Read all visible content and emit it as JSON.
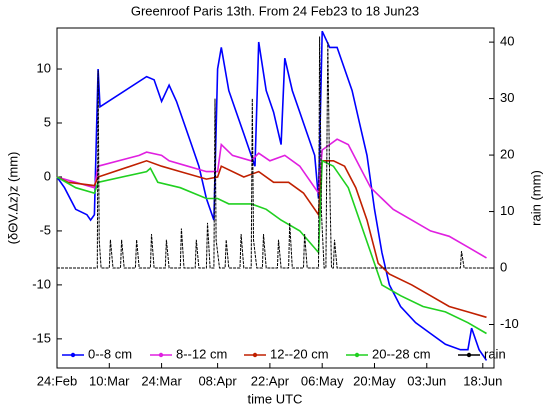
{
  "chart_data": {
    "type": "line",
    "title": "Greenroof Paris 13th. From 24 Feb23 to 18 Jun23",
    "xlabel": "time UTC",
    "ylabel": "(δΘV.Δz)z (mm)",
    "y2label": "rain (mm)",
    "xlim": [
      0,
      117
    ],
    "xticks": [
      {
        "value": 0,
        "label": "24:Feb"
      },
      {
        "value": 14,
        "label": "10:Mar"
      },
      {
        "value": 28,
        "label": "24:Mar"
      },
      {
        "value": 43,
        "label": "08:Apr"
      },
      {
        "value": 57,
        "label": "22:Apr"
      },
      {
        "value": 71,
        "label": "06:May"
      },
      {
        "value": 85,
        "label": "20:May"
      },
      {
        "value": 99,
        "label": "03:Jun"
      },
      {
        "value": 114,
        "label": "18:Jun"
      }
    ],
    "ylim": [
      -17.7,
      13.8
    ],
    "yticks": [
      -15,
      -10,
      -5,
      0,
      5,
      10
    ],
    "y2lim": [
      -17.7,
      42.5
    ],
    "y2ticks": [
      -10,
      0,
      10,
      20,
      30,
      40
    ],
    "series": [
      {
        "name": "0--8 cm",
        "color": "#0000ff",
        "x": [
          0,
          2,
          5,
          8,
          9,
          10,
          11,
          11.5,
          24,
          26,
          28,
          30,
          32,
          34,
          36,
          38,
          40,
          42,
          43,
          44,
          46,
          48,
          50,
          52,
          53,
          54,
          56,
          58,
          60,
          61,
          63,
          65,
          67,
          69,
          70,
          71,
          73,
          75,
          77,
          79,
          81,
          83,
          85,
          87,
          89,
          92,
          96,
          100,
          104,
          108,
          110,
          111,
          113,
          115
        ],
        "values": [
          0,
          -1,
          -3,
          -3.5,
          -4,
          -3.5,
          10,
          6.5,
          9.3,
          9,
          7,
          8.5,
          7,
          5,
          3,
          1,
          -2,
          -4,
          10,
          12,
          8,
          6,
          4,
          2,
          1,
          12.5,
          8,
          6,
          3,
          11,
          8,
          6,
          4,
          2,
          -2,
          13.5,
          12,
          12,
          10,
          8,
          5,
          2,
          -3,
          -7,
          -10,
          -12,
          -13.5,
          -14.5,
          -15.5,
          -16,
          -16,
          -14,
          -16,
          -17
        ]
      },
      {
        "name": "8--12 cm",
        "color": "#e020e0",
        "x": [
          0,
          10,
          11,
          22,
          24,
          28,
          30,
          35,
          40,
          43,
          44,
          47,
          52,
          54,
          57,
          61,
          65,
          70,
          71,
          75,
          78,
          81,
          84,
          87,
          90,
          95,
          100,
          105,
          110,
          115
        ],
        "values": [
          0,
          -1,
          1,
          2,
          2.3,
          2,
          1.5,
          1,
          0.5,
          0.5,
          3,
          2,
          1.5,
          2.2,
          1.5,
          2,
          1,
          -1.5,
          2.5,
          3.5,
          3,
          1,
          -1,
          -2,
          -3,
          -4,
          -5,
          -5.5,
          -6.5,
          -7.5
        ]
      },
      {
        "name": "12--20 cm",
        "color": "#c02000",
        "x": [
          0,
          3,
          10,
          11,
          24,
          28,
          33,
          40,
          43,
          44,
          50,
          54,
          58,
          62,
          66,
          70,
          71,
          74,
          77,
          80,
          83,
          86,
          89,
          95,
          100,
          105,
          110,
          115
        ],
        "values": [
          0,
          -0.5,
          -0.8,
          0,
          1.5,
          1,
          0.5,
          -0.2,
          0,
          1,
          0,
          0.5,
          -0.5,
          -0.5,
          -1.5,
          -3.5,
          1.5,
          1.5,
          1,
          -1,
          -4,
          -8,
          -9,
          -10,
          -11,
          -12,
          -12.5,
          -13
        ]
      },
      {
        "name": "20--28 cm",
        "color": "#20d020",
        "x": [
          0,
          5,
          10,
          11,
          24,
          25,
          27,
          33,
          40,
          43,
          46,
          52,
          56,
          60,
          65,
          70,
          71,
          74,
          78,
          81,
          84,
          87,
          92,
          98,
          104,
          110,
          115
        ],
        "values": [
          0,
          -1,
          -1.5,
          -0.5,
          0.5,
          0.8,
          -0.5,
          -1,
          -2,
          -2,
          -2.5,
          -2.5,
          -3,
          -4,
          -5,
          -7,
          1.5,
          1,
          -1,
          -4,
          -7,
          -10,
          -11,
          -12,
          -12.5,
          -13.5,
          -14.5
        ]
      },
      {
        "name": "rain",
        "color": "#000000",
        "axis": "y2",
        "x": [
          0,
          10.8,
          11,
          11.3,
          11.8,
          14,
          14.3,
          15,
          17,
          17.3,
          18,
          21,
          21.3,
          22,
          25,
          25.3,
          26,
          29,
          29.3,
          30,
          33,
          33.3,
          34,
          37,
          37.3,
          38,
          40,
          40.3,
          41,
          42,
          42.3,
          42.6,
          43.5,
          45,
          45.3,
          46,
          49,
          49.3,
          50,
          52,
          52.3,
          52.6,
          53.5,
          55,
          55.3,
          56,
          59,
          59.3,
          60,
          62,
          62.3,
          63,
          66,
          66.3,
          67,
          70,
          70.3,
          70.8,
          71.5,
          72,
          72.5,
          73,
          73.5,
          74,
          74.3,
          75,
          108,
          108.3,
          109,
          117
        ],
        "values": [
          0,
          0,
          35,
          5,
          0,
          0,
          5,
          0,
          0,
          5,
          0,
          0,
          5,
          0,
          0,
          6,
          0,
          0,
          5,
          0,
          0,
          7,
          0,
          0,
          5,
          0,
          0,
          8,
          0,
          0,
          30,
          5,
          0,
          0,
          5,
          0,
          0,
          6,
          0,
          0,
          30,
          5,
          0,
          0,
          6,
          0,
          0,
          5,
          0,
          0,
          8,
          0,
          0,
          6,
          0,
          0,
          41,
          10,
          0,
          0,
          40,
          15,
          0,
          0,
          5,
          0,
          0,
          3,
          0,
          0
        ]
      }
    ]
  }
}
